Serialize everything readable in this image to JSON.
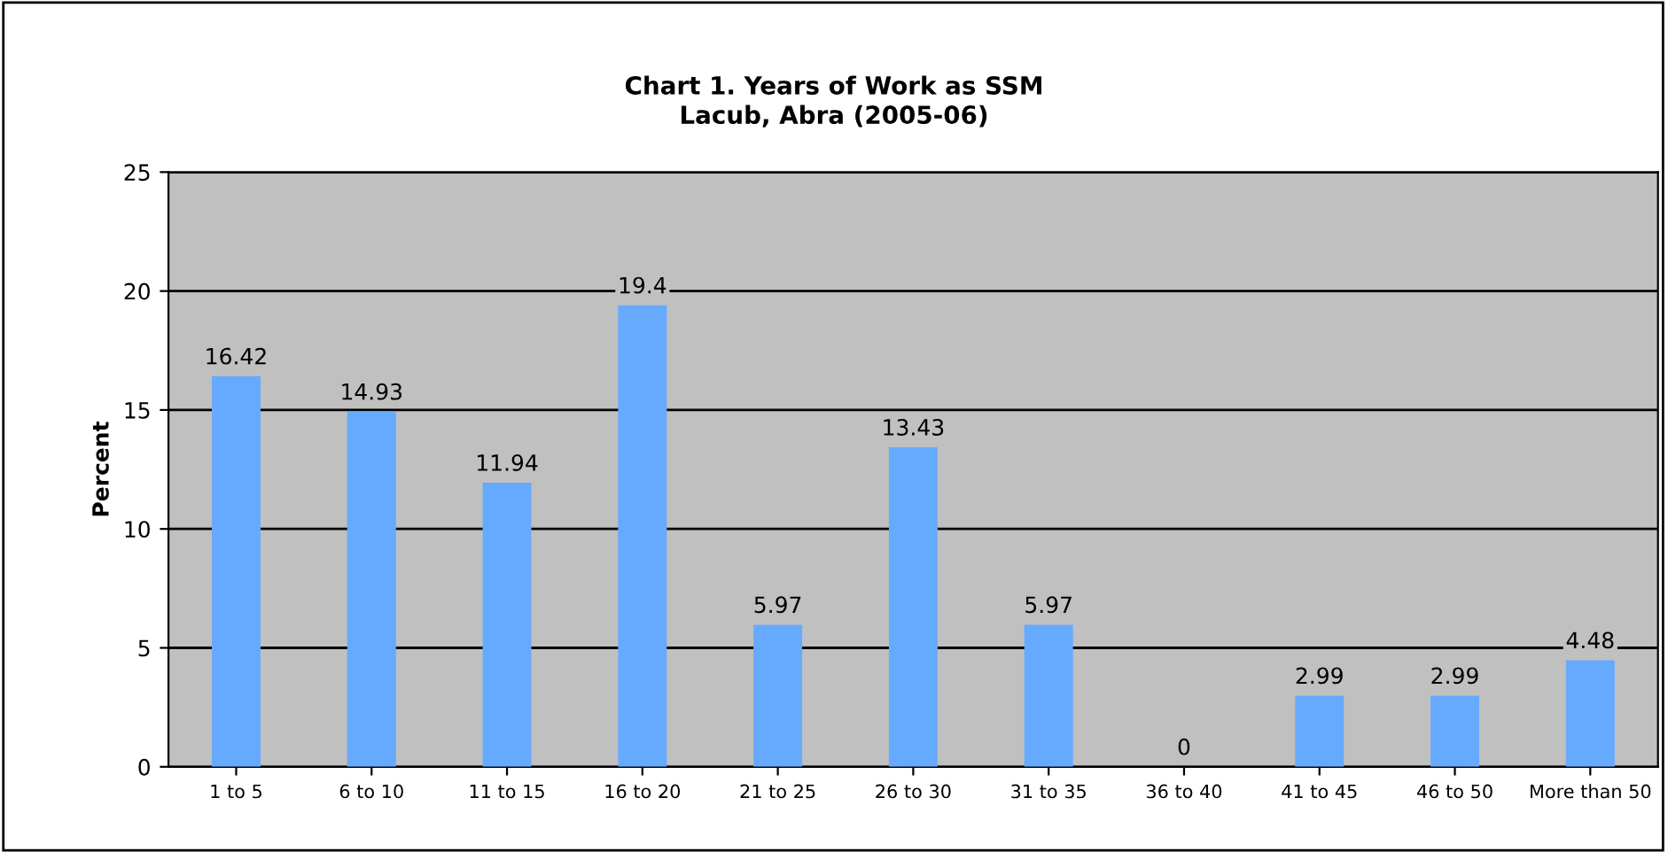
{
  "chart_data": {
    "type": "bar",
    "title": "Chart 1. Years of Work as SSM\nLacub, Abra (2005-06)",
    "ylabel": "Percent",
    "categories": [
      "1 to 5",
      "6 to 10",
      "11 to 15",
      "16 to 20",
      "21 to 25",
      "26 to 30",
      "31 to 35",
      "36 to 40",
      "41 to 45",
      "46 to 50",
      "More than 50"
    ],
    "values": [
      16.42,
      14.93,
      11.94,
      19.4,
      5.97,
      13.43,
      5.97,
      0,
      2.99,
      2.99,
      4.48
    ],
    "color": "#66aaff",
    "ylim": [
      0,
      25
    ],
    "yticks": [
      0,
      5,
      10,
      15,
      20,
      25
    ],
    "grid": "y",
    "data_labels": true
  }
}
